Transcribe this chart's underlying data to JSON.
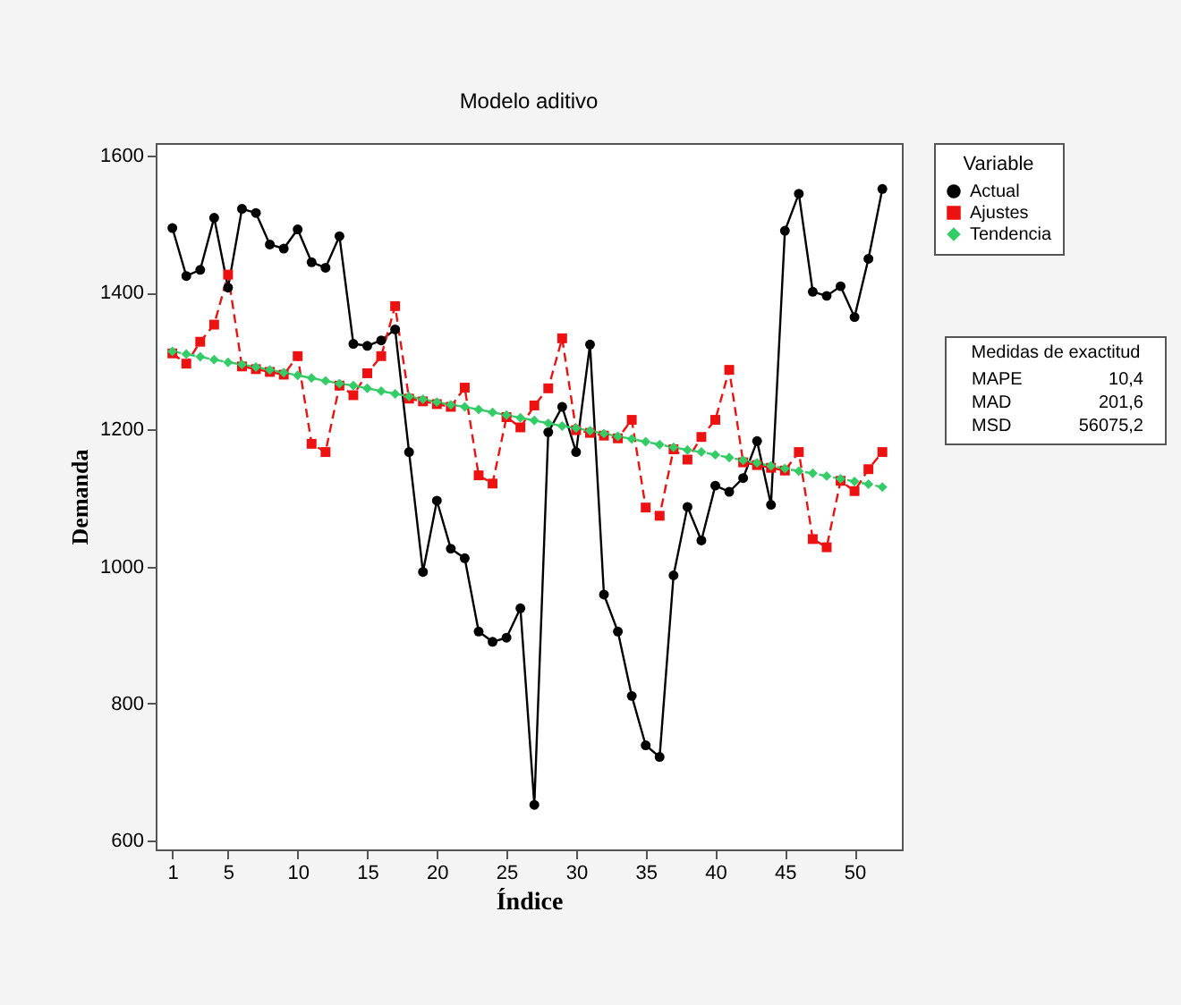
{
  "chart_data": {
    "type": "line",
    "title": "Modelo aditivo",
    "xlabel": "Índice",
    "ylabel": "Demanda",
    "legend_title": "Variable",
    "legend": "right",
    "grid": false,
    "x": [
      1,
      2,
      3,
      4,
      5,
      6,
      7,
      8,
      9,
      10,
      11,
      12,
      13,
      14,
      15,
      16,
      17,
      18,
      19,
      20,
      21,
      22,
      23,
      24,
      25,
      26,
      27,
      28,
      29,
      30,
      31,
      32,
      33,
      34,
      35,
      36,
      37,
      38,
      39,
      40,
      41,
      42,
      43,
      44,
      45,
      46,
      47,
      48,
      49,
      50,
      51,
      52
    ],
    "xlim": [
      -0.2,
      53.4
    ],
    "xticks": [
      1,
      5,
      10,
      15,
      20,
      25,
      30,
      35,
      40,
      45,
      50
    ],
    "ylim": [
      587,
      1618
    ],
    "yticks": [
      600,
      800,
      1000,
      1200,
      1400,
      1600
    ],
    "series": [
      {
        "name": "Actual",
        "color": "#000000",
        "marker": "circle",
        "line_style": "solid",
        "values": [
          1494,
          1424,
          1433,
          1509,
          1407,
          1522,
          1516,
          1470,
          1464,
          1492,
          1444,
          1436,
          1482,
          1325,
          1322,
          1330,
          1346,
          1167,
          992,
          1096,
          1026,
          1012,
          905,
          890,
          896,
          939,
          652,
          1196,
          1233,
          1167,
          1324,
          959,
          905,
          811,
          739,
          722,
          987,
          1087,
          1038,
          1118,
          1109,
          1129,
          1183,
          1090,
          1490,
          1544,
          1401,
          1395,
          1409,
          1364,
          1449,
          1551
        ]
      },
      {
        "name": "Ajustes",
        "color": "#ee1111",
        "marker": "square",
        "line_style": "dashed",
        "values": [
          1311,
          1296,
          1328,
          1353,
          1426,
          1292,
          1288,
          1284,
          1280,
          1307,
          1179,
          1167,
          1264,
          1250,
          1282,
          1307,
          1380,
          1245,
          1241,
          1237,
          1233,
          1261,
          1133,
          1121,
          1218,
          1203,
          1235,
          1260,
          1333,
          1199,
          1195,
          1191,
          1187,
          1214,
          1086,
          1074,
          1171,
          1156,
          1189,
          1214,
          1287,
          1152,
          1148,
          1144,
          1140,
          1167,
          1040,
          1028,
          1125,
          1110,
          1142,
          1167
        ]
      },
      {
        "name": "Tendencia",
        "color": "#33cc66",
        "marker": "diamond",
        "line_style": "dashed",
        "values": [
          1314,
          1310,
          1306,
          1302,
          1298,
          1295,
          1291,
          1287,
          1283,
          1279,
          1275,
          1271,
          1267,
          1264,
          1260,
          1256,
          1252,
          1248,
          1244,
          1240,
          1236,
          1233,
          1229,
          1225,
          1221,
          1217,
          1213,
          1209,
          1205,
          1202,
          1198,
          1194,
          1190,
          1186,
          1182,
          1178,
          1174,
          1170,
          1167,
          1163,
          1159,
          1155,
          1151,
          1147,
          1143,
          1139,
          1136,
          1132,
          1128,
          1124,
          1120,
          1116
        ]
      }
    ],
    "annotations": [
      "Medidas de exactitud",
      "MAPE",
      "10,4",
      "MAD",
      "201,6",
      "MSD",
      "56075,2"
    ]
  }
}
